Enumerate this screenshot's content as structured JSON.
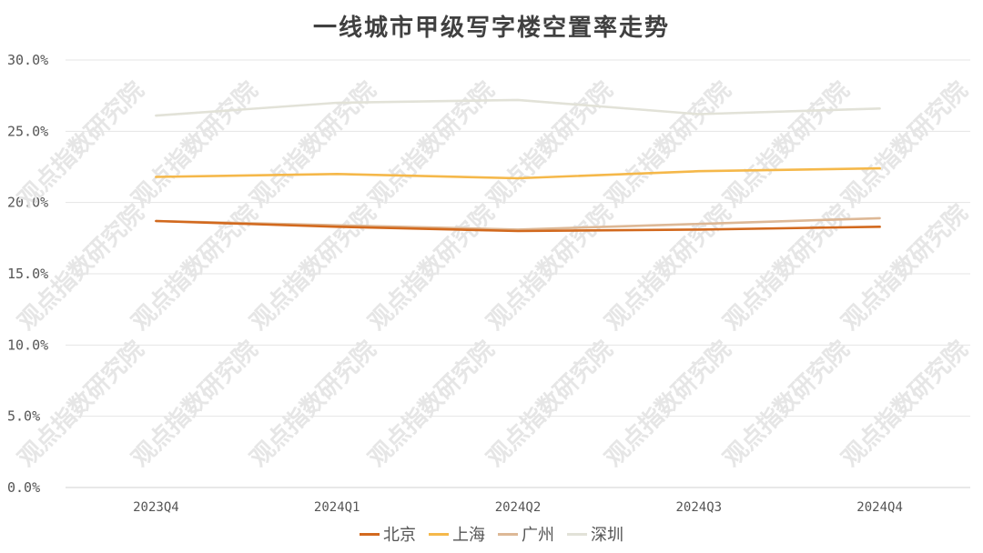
{
  "chart_data": {
    "type": "line",
    "title": "一线城市甲级写字楼空置率走势",
    "categories": [
      "2023Q4",
      "2024Q1",
      "2024Q2",
      "2024Q3",
      "2024Q4"
    ],
    "series": [
      {
        "name": "北京",
        "color": "#d2691e",
        "values": [
          18.7,
          18.3,
          18.0,
          18.1,
          18.3
        ]
      },
      {
        "name": "上海",
        "color": "#f5b84a",
        "values": [
          21.8,
          22.0,
          21.7,
          22.2,
          22.4
        ]
      },
      {
        "name": "广州",
        "color": "#ddb896",
        "values": [
          18.7,
          18.4,
          18.1,
          18.5,
          18.9
        ]
      },
      {
        "name": "深圳",
        "color": "#e2e2d8",
        "values": [
          26.1,
          27.0,
          27.2,
          26.2,
          26.6
        ]
      }
    ],
    "yticks": [
      "0.0%",
      "5.0%",
      "10.0%",
      "15.0%",
      "20.0%",
      "25.0%",
      "30.0%"
    ],
    "ylim": [
      0,
      30
    ],
    "grid": true,
    "legend_position": "bottom",
    "watermark": "观点指数研究院"
  }
}
